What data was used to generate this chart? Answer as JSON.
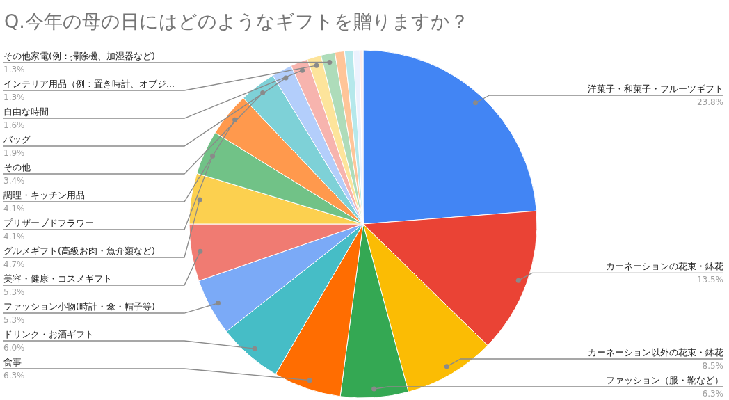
{
  "chart_data": {
    "type": "pie",
    "title": "Q.今年の母の日にはどのようなギフトを贈りますか？",
    "categories": [
      "洋菓子・和菓子・フルーツギフト",
      "カーネーションの花束・鉢花",
      "カーネーション以外の花束・鉢花",
      "ファッション（服・靴など）",
      "食事",
      "ドリンク・お酒ギフト",
      "ファッション小物(時計・傘・帽子等)",
      "美容・健康・コスメギフト",
      "グルメギフト(高級お肉・魚介類など)",
      "プリザーブドフラワー",
      "調理・キッチン用品",
      "その他",
      "バッグ",
      "自由な時間",
      "インテリア用品（例：置き時計、オブジ...",
      "その他家電(例：掃除機、加湿器など)",
      null,
      null,
      null,
      null
    ],
    "values": [
      23.8,
      13.5,
      8.5,
      6.3,
      6.3,
      6.0,
      5.3,
      5.3,
      4.7,
      4.1,
      4.1,
      3.4,
      1.9,
      1.6,
      1.3,
      1.3,
      0.9,
      0.8,
      0.6,
      0.3
    ],
    "value_labels": [
      "23.8%",
      "13.5%",
      "8.5%",
      "6.3%",
      "6.3%",
      "6.0%",
      "5.3%",
      "5.3%",
      "4.7%",
      "4.1%",
      "4.1%",
      "3.4%",
      "1.9%",
      "1.6%",
      "1.3%",
      "1.3%",
      null,
      null,
      null,
      null
    ],
    "colors": [
      "#4285f4",
      "#ea4335",
      "#fbbc04",
      "#34a853",
      "#ff6d01",
      "#46bdc6",
      "#7baaf7",
      "#f07b72",
      "#fcd04f",
      "#71c287",
      "#ff994d",
      "#7ed1d7",
      "#b3cefb",
      "#f7b4ae",
      "#fde49b",
      "#aedcba",
      "#ffc599",
      "#b5e8eb",
      "#ecf2fe",
      "#fdeceb"
    ]
  }
}
